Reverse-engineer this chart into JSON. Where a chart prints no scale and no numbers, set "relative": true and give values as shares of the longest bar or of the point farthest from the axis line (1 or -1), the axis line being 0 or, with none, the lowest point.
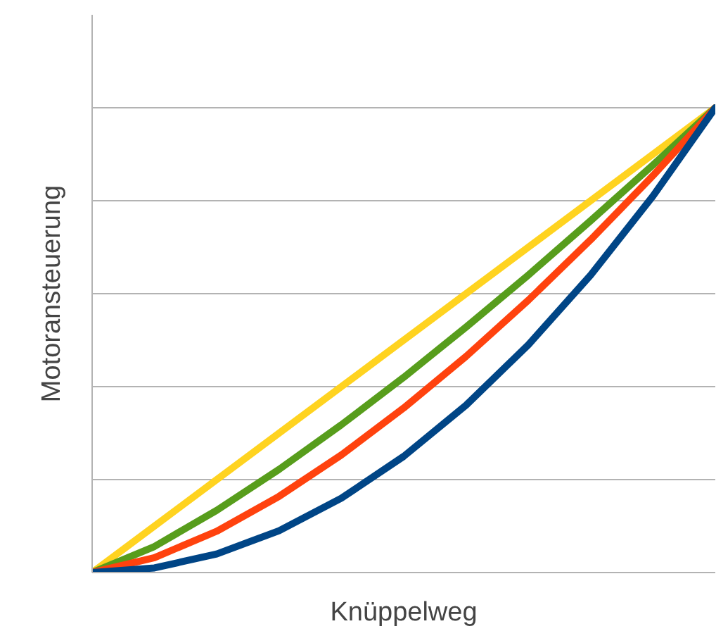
{
  "chart_data": {
    "type": "line",
    "xlabel": "Knüppelweg",
    "ylabel": "Motoransteuerung",
    "relative": true,
    "grid": "y",
    "marker": "none",
    "line_style": "solid",
    "categories": [
      null,
      null,
      null,
      null,
      null,
      null,
      null,
      null,
      null,
      null,
      null
    ],
    "series": [
      {
        "color": "#ffd320",
        "values": [
          0,
          0.1,
          0.2,
          0.3,
          0.4,
          0.5,
          0.6,
          0.7,
          0.8,
          0.9,
          1
        ]
      },
      {
        "color": "#579d1c",
        "values": [
          0,
          0.056,
          0.134,
          0.222,
          0.318,
          0.42,
          0.528,
          0.64,
          0.757,
          0.877,
          1
        ]
      },
      {
        "color": "#ff420e",
        "values": [
          0,
          0.032,
          0.089,
          0.164,
          0.253,
          0.354,
          0.465,
          0.586,
          0.716,
          0.854,
          1
        ]
      },
      {
        "color": "#004586",
        "values": [
          0,
          0.01,
          0.04,
          0.09,
          0.16,
          0.25,
          0.36,
          0.49,
          0.64,
          0.81,
          1
        ]
      }
    ]
  }
}
